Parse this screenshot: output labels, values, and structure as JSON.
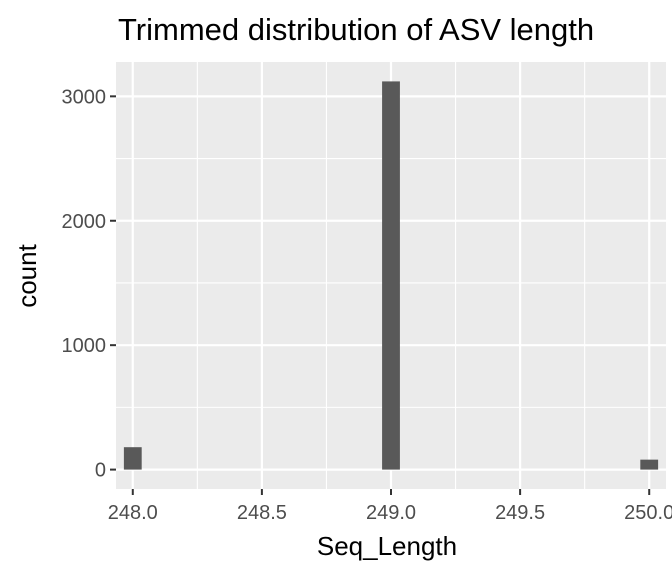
{
  "chart_data": {
    "type": "bar",
    "title": "Trimmed distribution of ASV length",
    "xlabel": "Seq_Length",
    "ylabel": "count",
    "x": [
      248,
      249,
      250
    ],
    "values": [
      180,
      3120,
      80
    ],
    "xlim": [
      247.935,
      250.065
    ],
    "ylim": [
      -156,
      3276
    ],
    "xticks": [
      248.0,
      248.5,
      249.0,
      249.5,
      250.0
    ],
    "xtick_labels": [
      "248.0",
      "248.5",
      "249.0",
      "249.5",
      "250.0"
    ],
    "yticks": [
      0,
      1000,
      2000,
      3000
    ],
    "ytick_labels": [
      "0",
      "1000",
      "2000",
      "3000"
    ],
    "grid": true,
    "colors": {
      "panel": "#EBEBEB",
      "bar": "#595959",
      "grid": "#FFFFFF",
      "tick": "#333333"
    }
  }
}
